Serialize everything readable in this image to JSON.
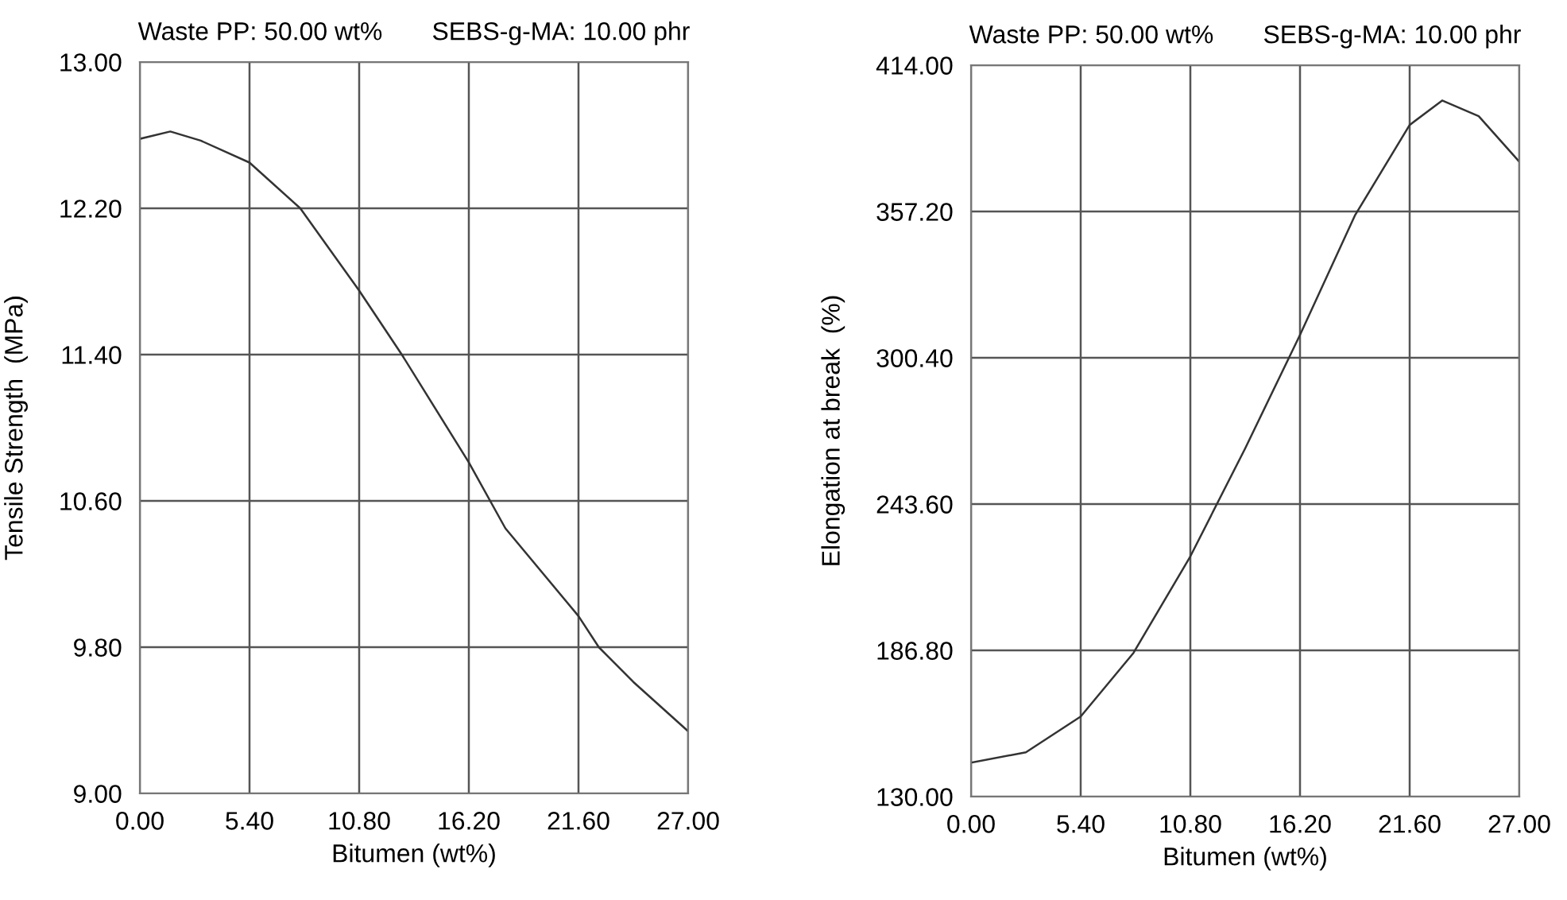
{
  "chart_data": [
    {
      "type": "line",
      "title": "Waste PP: 50.00 wt%       SEBS-g-MA: 10.00 phr",
      "xlabel": "Bitumen (wt%)",
      "ylabel": "Tensile Strength  (MPa)",
      "grid": true,
      "marker": "none",
      "xlim": [
        0,
        27
      ],
      "ylim": [
        9,
        13
      ],
      "xticks": [
        {
          "value": 0,
          "label": "0.00"
        },
        {
          "value": 5.4,
          "label": "5.40"
        },
        {
          "value": 10.8,
          "label": "10.80"
        },
        {
          "value": 16.2,
          "label": "16.20"
        },
        {
          "value": 21.6,
          "label": "21.60"
        },
        {
          "value": 27,
          "label": "27.00"
        }
      ],
      "yticks": [
        {
          "value": 9,
          "label": "9.00"
        },
        {
          "value": 9.8,
          "label": "9.80"
        },
        {
          "value": 10.6,
          "label": "10.60"
        },
        {
          "value": 11.4,
          "label": "11.40"
        },
        {
          "value": 12.2,
          "label": "12.20"
        },
        {
          "value": 13,
          "label": "13.00"
        }
      ],
      "series": [
        {
          "color": "#333333",
          "x": [
            0,
            1.5,
            3,
            5.4,
            7.9,
            10.8,
            12.9,
            16.2,
            18,
            21.6,
            22.6,
            24.3,
            27
          ],
          "values": [
            12.58,
            12.62,
            12.57,
            12.45,
            12.2,
            11.75,
            11.4,
            10.81,
            10.45,
            9.97,
            9.8,
            9.61,
            9.34
          ]
        }
      ]
    },
    {
      "type": "line",
      "title": "Waste PP: 50.00 wt%       SEBS-g-MA: 10.00 phr",
      "xlabel": "Bitumen (wt%)",
      "ylabel": "Elongation at break  (%)",
      "grid": true,
      "marker": "none",
      "xlim": [
        0,
        27
      ],
      "ylim": [
        130,
        414
      ],
      "xticks": [
        {
          "value": 0,
          "label": "0.00"
        },
        {
          "value": 5.4,
          "label": "5.40"
        },
        {
          "value": 10.8,
          "label": "10.80"
        },
        {
          "value": 16.2,
          "label": "16.20"
        },
        {
          "value": 21.6,
          "label": "21.60"
        },
        {
          "value": 27,
          "label": "27.00"
        }
      ],
      "yticks": [
        {
          "value": 130,
          "label": "130.00"
        },
        {
          "value": 186.8,
          "label": "186.80"
        },
        {
          "value": 243.6,
          "label": "243.60"
        },
        {
          "value": 300.4,
          "label": "300.40"
        },
        {
          "value": 357.2,
          "label": "357.20"
        },
        {
          "value": 414,
          "label": "414.00"
        }
      ],
      "series": [
        {
          "color": "#333333",
          "x": [
            0,
            2.7,
            5.4,
            8,
            10.8,
            13.5,
            16.2,
            18.9,
            21.6,
            23.2,
            25,
            27
          ],
          "values": [
            143.2,
            147.2,
            161.1,
            185.8,
            223.3,
            265.2,
            309.3,
            355.6,
            390.8,
            400.3,
            394.2,
            376.5
          ]
        }
      ]
    }
  ]
}
